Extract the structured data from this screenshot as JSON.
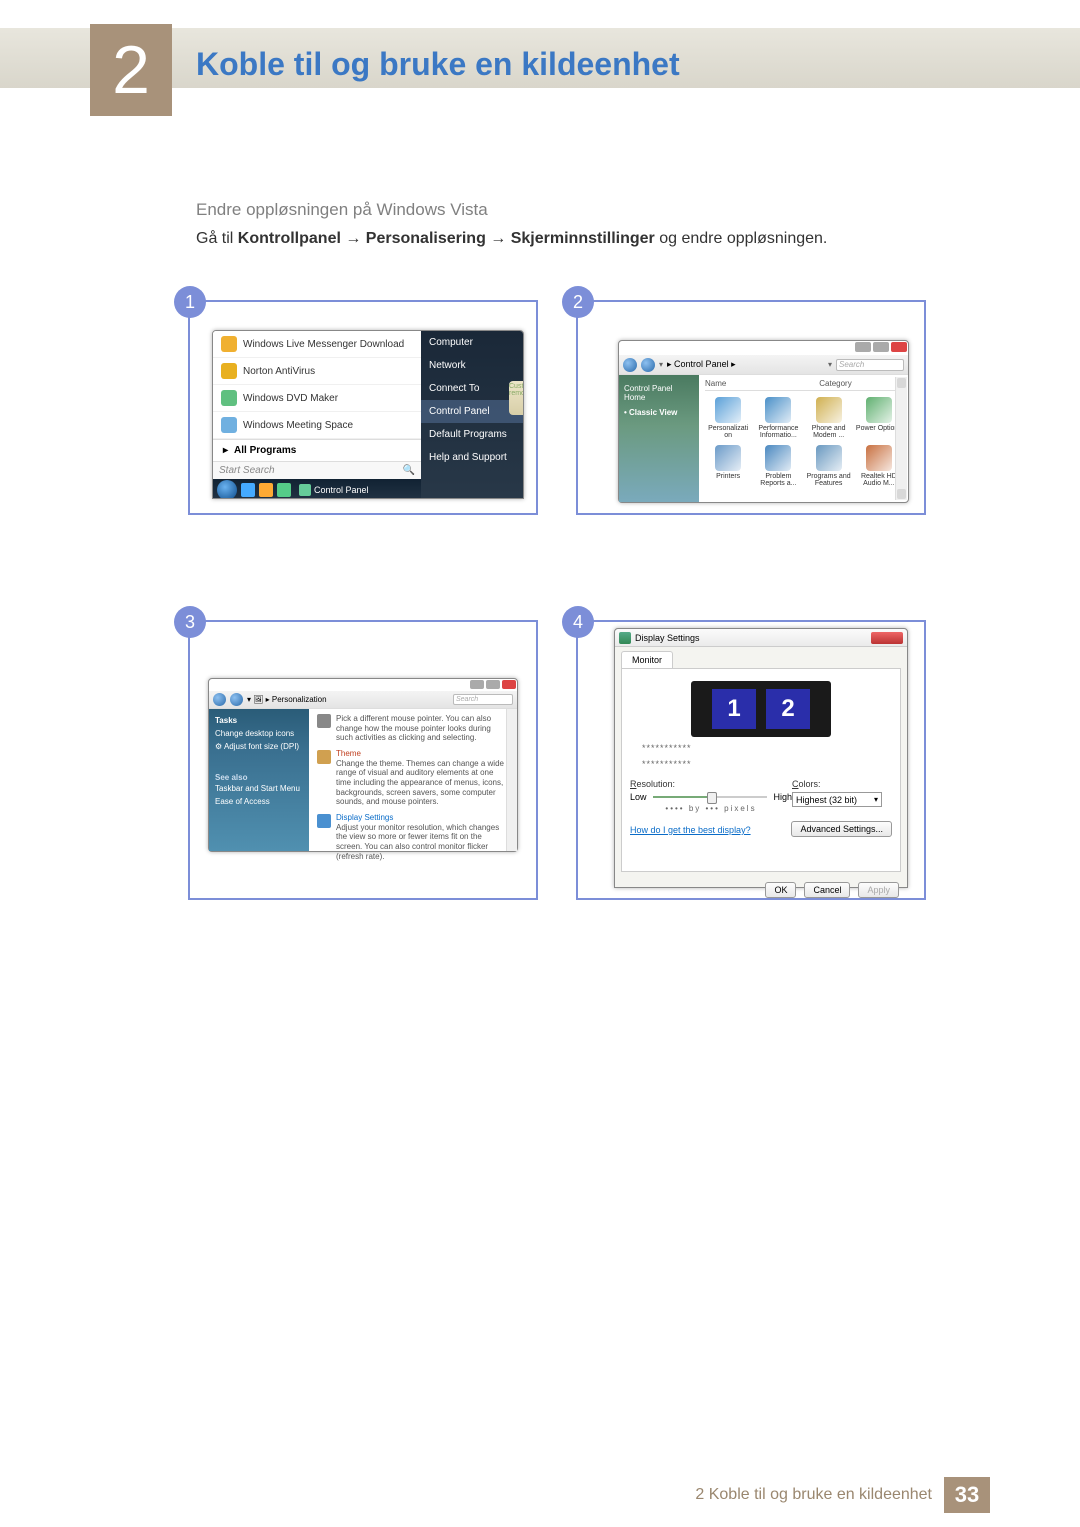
{
  "chapter": {
    "number": "2",
    "title": "Koble til og bruke en kildeenhet"
  },
  "section": {
    "subtitle": "Endre oppløsningen på Windows Vista"
  },
  "instruction": {
    "prefix": "Gå til ",
    "b1": "Kontrollpanel",
    "arrow": " → ",
    "b2": "Personalisering",
    "b3": "Skjerminnstillinger",
    "suffix": " og endre oppløsningen."
  },
  "badges": {
    "p1": "1",
    "p2": "2",
    "p3": "3",
    "p4": "4"
  },
  "panel1": {
    "left_items": [
      {
        "label": "Windows Live Messenger Download",
        "color": "#f0b030"
      },
      {
        "label": "Norton AntiVirus",
        "color": "#e8b020"
      },
      {
        "label": "Windows DVD Maker",
        "color": "#60c080"
      },
      {
        "label": "Windows Meeting Space",
        "color": "#70b0e0"
      }
    ],
    "all_programs": "All Programs",
    "search": "Start Search",
    "right_items": [
      "Computer",
      "Network",
      "Connect To",
      "Control Panel",
      "Default Programs",
      "Help and Support"
    ],
    "right_highlight_index": 3,
    "taskbar_cp": "Control Panel",
    "sidebar_tag": "Cust\nremo"
  },
  "panel2": {
    "breadcrumb": "Control Panel",
    "search": "Search",
    "side": {
      "home": "Control Panel Home",
      "classic": "Classic View"
    },
    "headers": [
      "Name",
      "Category"
    ],
    "icons": [
      {
        "label": "Personalizati on",
        "color": "#5aa0d8"
      },
      {
        "label": "Performance Informatio...",
        "color": "#4a90c8"
      },
      {
        "label": "Phone and Modem ...",
        "color": "#d0b050"
      },
      {
        "label": "Power Options",
        "color": "#60b070"
      },
      {
        "label": "Printers",
        "color": "#6a9ac8"
      },
      {
        "label": "Problem Reports a...",
        "color": "#4a88c0"
      },
      {
        "label": "Programs and Features",
        "color": "#6898c0"
      },
      {
        "label": "Realtek HD Audio M...",
        "color": "#c87040"
      }
    ]
  },
  "panel3": {
    "breadcrumb": "Personalization",
    "search": "Search",
    "side": {
      "tasks": "Tasks",
      "links": [
        "Change desktop icons",
        "Adjust font size (DPI)"
      ],
      "seealso": "See also",
      "seelinks": [
        "Taskbar and Start Menu",
        "Ease of Access"
      ]
    },
    "items": [
      {
        "title": "",
        "color": "#888",
        "desc": "Pick a different mouse pointer. You can also change how the mouse pointer looks during such activities as clicking and selecting."
      },
      {
        "title": "Theme",
        "t_color": "#c04020",
        "color": "#d0a050",
        "desc": "Change the theme. Themes can change a wide range of visual and auditory elements at one time including the appearance of menus, icons, backgrounds, screen savers, some computer sounds, and mouse pointers."
      },
      {
        "title": "Display Settings",
        "t_color": "#0a6cc8",
        "color": "#4a90d0",
        "desc": "Adjust your monitor resolution, which changes the view so more or fewer items fit on the screen. You can also control monitor flicker (refresh rate)."
      }
    ]
  },
  "panel4": {
    "window_title": "Display Settings",
    "tab": "Monitor",
    "monitors": [
      "1",
      "2"
    ],
    "dots": "***********",
    "res_label": "Resolution:",
    "res_u": "R",
    "low": "Low",
    "high": "High",
    "px": "•••• by ••• pixels",
    "colors_label": "Colors:",
    "colors_u": "C",
    "colors_value": "Highest (32 bit)",
    "help_link": "How do I get the best display?",
    "advanced": "Advanced Settings...",
    "ok": "OK",
    "cancel": "Cancel",
    "apply": "Apply"
  },
  "footer": {
    "text": "2 Koble til og bruke en kildeenhet",
    "page": "33"
  }
}
